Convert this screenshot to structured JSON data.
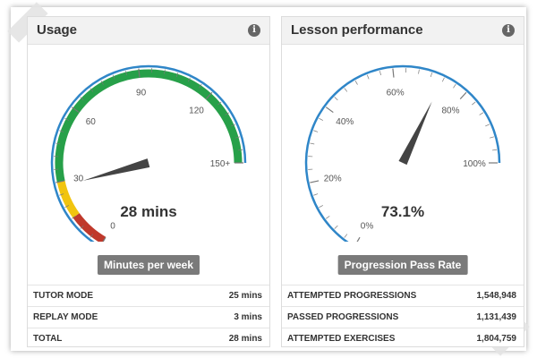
{
  "usage": {
    "title": "Usage",
    "info_icon": "info-icon",
    "gauge": {
      "ticks": [
        "0",
        "30",
        "60",
        "90",
        "120",
        "150+"
      ],
      "value_text": "28 mins",
      "value": 28,
      "max": 150,
      "colors": {
        "red": "#c0392b",
        "yellow": "#f1c40f",
        "green": "#27a049",
        "outline": "#2f86c8"
      }
    },
    "badge": "Minutes per week",
    "stats": [
      {
        "label": "TUTOR MODE",
        "value": "25 mins"
      },
      {
        "label": "REPLAY MODE",
        "value": "3 mins"
      },
      {
        "label": "TOTAL",
        "value": "28 mins"
      }
    ]
  },
  "performance": {
    "title": "Lesson performance",
    "info_icon": "info-icon",
    "gauge": {
      "ticks": [
        "0%",
        "20%",
        "40%",
        "60%",
        "80%",
        "100%"
      ],
      "value_text": "73.1%",
      "value": 73.1,
      "max": 100,
      "colors": {
        "outline": "#2f86c8"
      }
    },
    "badge": "Progression Pass Rate",
    "stats": [
      {
        "label": "ATTEMPTED PROGRESSIONS",
        "value": "1,548,948"
      },
      {
        "label": "PASSED PROGRESSIONS",
        "value": "1,131,439"
      },
      {
        "label": "ATTEMPTED EXERCISES",
        "value": "1,804,759"
      }
    ]
  }
}
